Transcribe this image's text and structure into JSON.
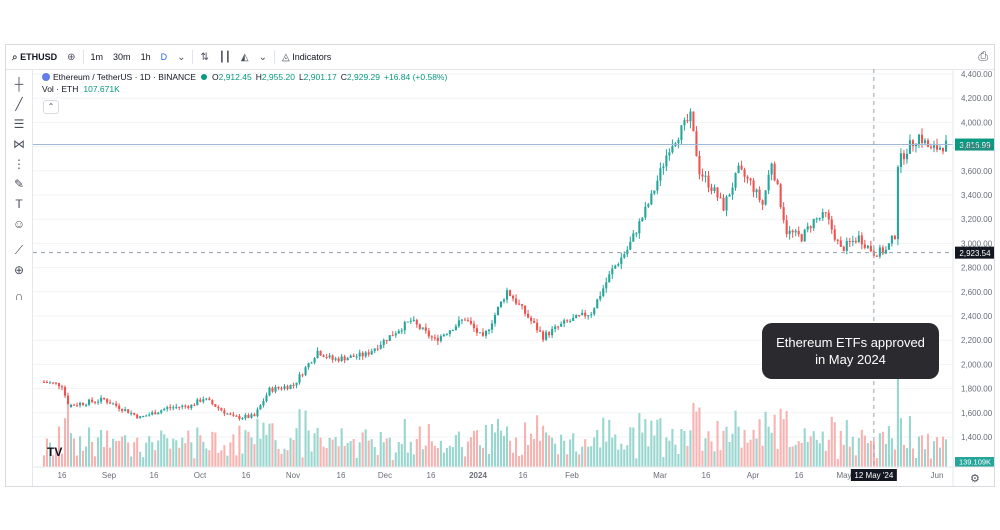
{
  "toolbar": {
    "symbol": "ETHUSD",
    "intervals": [
      "1m",
      "30m",
      "1h",
      "D"
    ],
    "active_interval": "D",
    "indicators_label": "Indicators",
    "icons": [
      "search-icon",
      "add-symbol-icon",
      "chevron-down-icon",
      "compare-icon",
      "candles-icon",
      "area-chart-icon",
      "indicators-icon",
      "camera-icon"
    ]
  },
  "sidebar": {
    "tools": [
      "crosshair-icon",
      "trend-line-icon",
      "fib-icon",
      "pattern-icon",
      "measure-group-icon",
      "brush-icon",
      "text-icon",
      "emoji-icon",
      "ruler-icon",
      "zoom-icon",
      "magnet-icon"
    ]
  },
  "legend": {
    "title": "Ethereum / TetherUS · 1D · BINANCE",
    "open_label": "O",
    "open": "2,912.45",
    "high_label": "H",
    "high": "2,955.20",
    "low_label": "L",
    "low": "2,901.17",
    "close_label": "C",
    "close": "2,929.29",
    "change": "+16.84 (+0.58%)",
    "volume_label": "Vol · ETH",
    "volume_value": "107.671K"
  },
  "annotation": "Ethereum ETFs approved in May 2024",
  "branding": "TV",
  "colors": {
    "up": "#26a69a",
    "down": "#ef5350",
    "volume_up": "#99d6cf",
    "volume_down": "#f7b3b1",
    "price_line": "#9fb8d9",
    "annotation_bg": "#2b2b2f"
  },
  "chart_data": {
    "type": "candlestick",
    "y_ticks": [
      "4,400.00",
      "4,200.00",
      "4,000.00",
      "3,800.00",
      "3,600.00",
      "3,400.00",
      "3,200.00",
      "3,000.00",
      "2,800.00",
      "2,600.00",
      "2,400.00",
      "2,200.00",
      "2,000.00",
      "1,800.00",
      "1,600.00",
      "1,400.00"
    ],
    "ylim": [
      1320,
      4420
    ],
    "x_labels": [
      "16",
      "Sep",
      "16",
      "Oct",
      "16",
      "Nov",
      "16",
      "Dec",
      "16",
      "2024",
      "16",
      "Feb",
      "Mar",
      "16",
      "Apr",
      "16",
      "May",
      "16",
      "Jun"
    ],
    "bold_x_labels": [
      "2024"
    ],
    "current_price_label": "3,816.99",
    "current_price": 3816.99,
    "crosshair_price_label": "2,923.54",
    "crosshair_price": 2923.54,
    "crosshair_date_label": "12 May '24",
    "volume_label": "139.109K",
    "price_path": [
      {
        "date": "2023-08-10",
        "close": 1855
      },
      {
        "date": "2023-08-16",
        "close": 1830
      },
      {
        "date": "2023-08-18",
        "close": 1660
      },
      {
        "date": "2023-08-30",
        "close": 1710
      },
      {
        "date": "2023-09-11",
        "close": 1560
      },
      {
        "date": "2023-09-20",
        "close": 1640
      },
      {
        "date": "2023-09-28",
        "close": 1660
      },
      {
        "date": "2023-10-02",
        "close": 1720
      },
      {
        "date": "2023-10-12",
        "close": 1560
      },
      {
        "date": "2023-10-19",
        "close": 1570
      },
      {
        "date": "2023-10-24",
        "close": 1790
      },
      {
        "date": "2023-11-01",
        "close": 1830
      },
      {
        "date": "2023-11-09",
        "close": 2110
      },
      {
        "date": "2023-11-14",
        "close": 2040
      },
      {
        "date": "2023-11-25",
        "close": 2080
      },
      {
        "date": "2023-12-06",
        "close": 2290
      },
      {
        "date": "2023-12-10",
        "close": 2360
      },
      {
        "date": "2023-12-18",
        "close": 2200
      },
      {
        "date": "2023-12-28",
        "close": 2380
      },
      {
        "date": "2024-01-03",
        "close": 2210
      },
      {
        "date": "2024-01-11",
        "close": 2610
      },
      {
        "date": "2024-01-14",
        "close": 2520
      },
      {
        "date": "2024-01-23",
        "close": 2230
      },
      {
        "date": "2024-01-30",
        "close": 2340
      },
      {
        "date": "2024-02-08",
        "close": 2430
      },
      {
        "date": "2024-02-15",
        "close": 2780
      },
      {
        "date": "2024-02-20",
        "close": 2950
      },
      {
        "date": "2024-02-28",
        "close": 3380
      },
      {
        "date": "2024-03-05",
        "close": 3800
      },
      {
        "date": "2024-03-12",
        "close": 4040
      },
      {
        "date": "2024-03-15",
        "close": 3600
      },
      {
        "date": "2024-03-20",
        "close": 3430
      },
      {
        "date": "2024-03-23",
        "close": 3300
      },
      {
        "date": "2024-03-28",
        "close": 3600
      },
      {
        "date": "2024-04-01",
        "close": 3500
      },
      {
        "date": "2024-04-05",
        "close": 3320
      },
      {
        "date": "2024-04-08",
        "close": 3680
      },
      {
        "date": "2024-04-13",
        "close": 3100
      },
      {
        "date": "2024-04-18",
        "close": 3050
      },
      {
        "date": "2024-04-22",
        "close": 3190
      },
      {
        "date": "2024-04-26",
        "close": 3230
      },
      {
        "date": "2024-05-01",
        "close": 2950
      },
      {
        "date": "2024-05-07",
        "close": 3050
      },
      {
        "date": "2024-05-12",
        "close": 2923
      },
      {
        "date": "2024-05-16",
        "close": 2940
      },
      {
        "date": "2024-05-19",
        "close": 3070
      },
      {
        "date": "2024-05-20",
        "close": 3660
      },
      {
        "date": "2024-05-23",
        "close": 3780
      },
      {
        "date": "2024-05-27",
        "close": 3890
      },
      {
        "date": "2024-05-31",
        "close": 3770
      },
      {
        "date": "2024-06-05",
        "close": 3816
      }
    ]
  }
}
